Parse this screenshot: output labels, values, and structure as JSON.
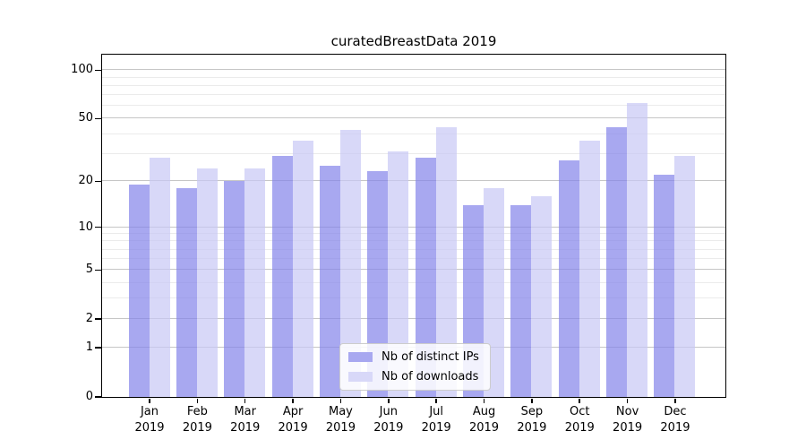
{
  "title": "curatedBreastData 2019",
  "legend": {
    "items": [
      {
        "label": "Nb of distinct IPs",
        "color": "#a8a8f0"
      },
      {
        "label": "Nb of downloads",
        "color": "#d8d8f8"
      }
    ]
  },
  "x_axis": {
    "months": [
      "Jan",
      "Feb",
      "Mar",
      "Apr",
      "May",
      "Jun",
      "Jul",
      "Aug",
      "Sep",
      "Oct",
      "Nov",
      "Dec"
    ],
    "year": "2019"
  },
  "y_axis": {
    "ticks": [
      0,
      1,
      2,
      5,
      10,
      20,
      50,
      100
    ]
  },
  "chart_data": {
    "type": "bar",
    "title": "curatedBreastData 2019",
    "categories": [
      "Jan 2019",
      "Feb 2019",
      "Mar 2019",
      "Apr 2019",
      "May 2019",
      "Jun 2019",
      "Jul 2019",
      "Aug 2019",
      "Sep 2019",
      "Oct 2019",
      "Nov 2019",
      "Dec 2019"
    ],
    "series": [
      {
        "name": "Nb of distinct IPs",
        "color": "#a8a8f0",
        "values": [
          19,
          18,
          20,
          29,
          25,
          23,
          28,
          14,
          14,
          27,
          44,
          22
        ]
      },
      {
        "name": "Nb of downloads",
        "color": "#d8d8f8",
        "values": [
          28,
          24,
          24,
          36,
          42,
          31,
          44,
          18,
          16,
          36,
          62,
          29
        ]
      }
    ],
    "xlabel": "",
    "ylabel": "",
    "yscale": "log1p",
    "yticks": [
      0,
      1,
      2,
      5,
      10,
      20,
      50,
      100
    ],
    "minor_gridlines": [
      3,
      4,
      6,
      7,
      8,
      9,
      30,
      40,
      60,
      70,
      80,
      90
    ],
    "ylim": [
      0,
      125
    ],
    "grid": true,
    "legend_position": "lower center"
  }
}
